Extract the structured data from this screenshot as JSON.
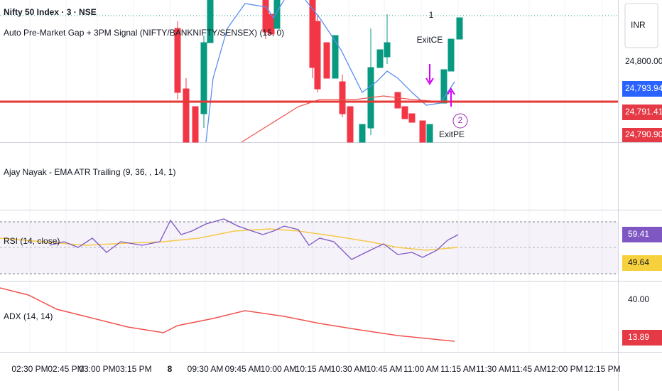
{
  "header": {
    "symbol": "Nifty 50 Index · 3 · NSE",
    "indicator": "Auto Pre-Market Gap + 3PM Signal (NIFTY/BANKNIFTY/SENSEX) (15, 0)"
  },
  "chart_annotations": {
    "signal_count": "1",
    "exit_ce": "ExitCE",
    "exit_pe": "ExitPE",
    "circle_count": "2"
  },
  "price_axis": {
    "currency": "INR",
    "level": "24,800.00",
    "last_price": "24,793.94",
    "line_price": "24,791.41",
    "low_price": "24,790.90"
  },
  "panes": {
    "ema_atr": {
      "title": "Ajay Nayak - EMA ATR Trailing (9, 36, , 14, 1)"
    },
    "rsi": {
      "title": "RSI (14, close)",
      "value": "59.41",
      "ma_value": "49.64"
    },
    "adx": {
      "title": "ADX (14, 14)",
      "level": "40.00",
      "value": "13.89"
    }
  },
  "time_axis": [
    "02:30 PM",
    "02:45 PM",
    "03:00 PM",
    "03:15 PM",
    "8",
    "09:30 AM",
    "09:45 AM",
    "10:00 AM",
    "10:15 AM",
    "10:30 AM",
    "10:45 AM",
    "11:00 AM",
    "11:15 AM",
    "11:30 AM",
    "11:45 AM",
    "12:00 PM",
    "12:15 PM"
  ]
}
